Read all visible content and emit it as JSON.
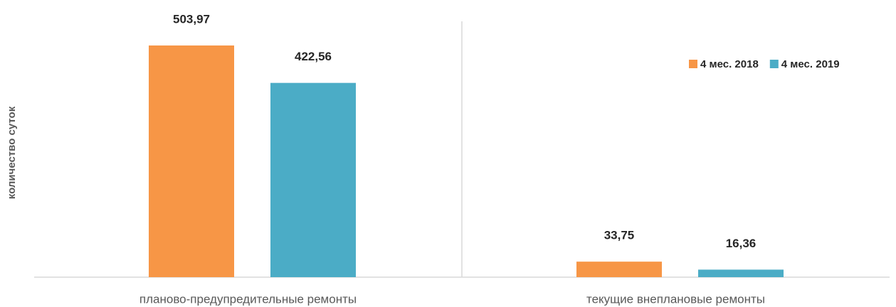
{
  "chart_data": {
    "type": "bar",
    "y_label": "количество суток",
    "categories": [
      "планово-предупредительные ремонты",
      "текущие внеплановые ремонты"
    ],
    "series": [
      {
        "name": "4 мес. 2018",
        "color": "#f79646",
        "values": [
          503.97,
          33.75
        ],
        "value_labels": [
          "503,97",
          "33,75"
        ]
      },
      {
        "name": "4 мес. 2019",
        "color": "#4bacc6",
        "values": [
          422.56,
          16.36
        ],
        "value_labels": [
          "422,56",
          "16,36"
        ]
      }
    ],
    "legend": "top-right"
  }
}
